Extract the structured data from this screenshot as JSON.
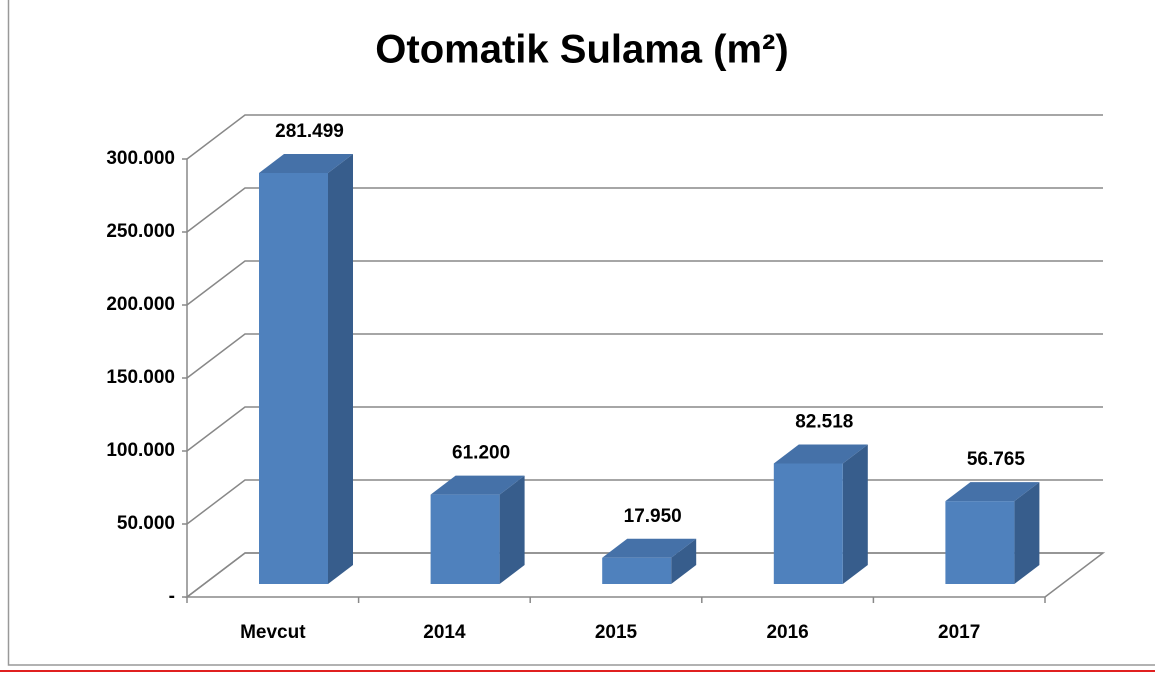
{
  "chart_data": {
    "type": "bar3d",
    "title": "Otomatik Sulama (m²)",
    "categories": [
      "Mevcut",
      "2014",
      "2015",
      "2016",
      "2017"
    ],
    "values": [
      281499,
      61200,
      17950,
      82518,
      56765
    ],
    "value_labels": [
      "281.499",
      "61.200",
      "17.950",
      "82.518",
      "56.765"
    ],
    "color": "#4f81bd",
    "ylim": [
      0,
      300000
    ],
    "yticks": [
      {
        "value": 0,
        "label": "-"
      },
      {
        "value": 50000,
        "label": "50.000"
      },
      {
        "value": 100000,
        "label": "100.000"
      },
      {
        "value": 150000,
        "label": "150.000"
      },
      {
        "value": 200000,
        "label": "200.000"
      },
      {
        "value": 250000,
        "label": "250.000"
      },
      {
        "value": 300000,
        "label": "300.000"
      }
    ],
    "grid": true
  }
}
